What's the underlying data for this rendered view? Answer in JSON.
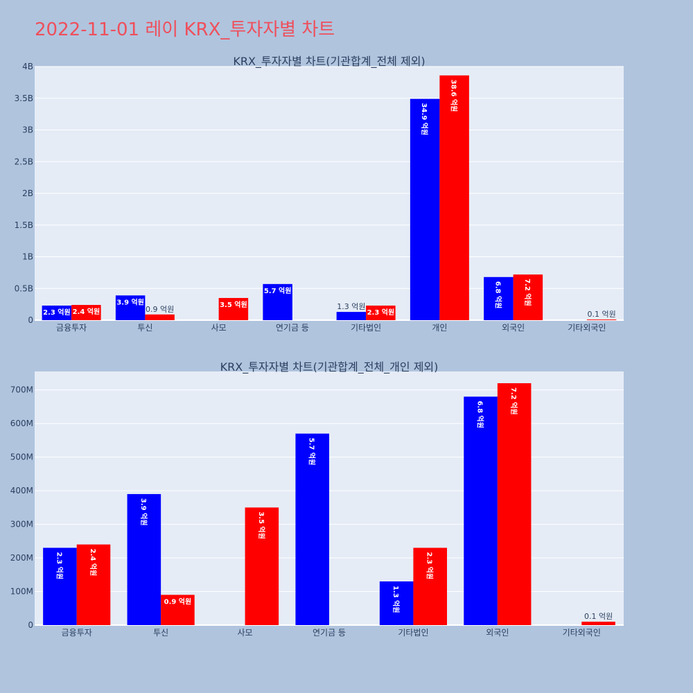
{
  "page": {
    "title": "2022-11-01 레이 KRX_투자자별 차트",
    "title_color": "#ef4f5b",
    "background": "#b0c4de"
  },
  "chart_data": [
    {
      "type": "bar",
      "title": "KRX_투자자별 차트(기관합계_전체 제외)",
      "categories": [
        "금융투자",
        "투신",
        "사모",
        "연기금 등",
        "기타법인",
        "개인",
        "외국인",
        "기타외국인"
      ],
      "series": [
        {
          "color": "#0000ff",
          "values": [
            230000000,
            390000000,
            0,
            570000000,
            130000000,
            3490000000,
            680000000,
            0
          ],
          "labels": [
            "2.3 억원",
            "3.9 억원",
            "",
            "5.7 억원",
            "1.3 억원",
            "34.9 억원",
            "6.8 억원",
            ""
          ]
        },
        {
          "color": "#ff0000",
          "values": [
            240000000,
            90000000,
            350000000,
            0,
            230000000,
            3860000000,
            720000000,
            10000000
          ],
          "labels": [
            "2.4 억원",
            "0.9 억원",
            "3.5 억원",
            "",
            "2.3 억원",
            "38.6 억원",
            "7.2 억원",
            "0.1 억원"
          ]
        }
      ],
      "ylim": [
        0,
        4000000000
      ],
      "yticks": [
        0,
        500000000,
        1000000000,
        1500000000,
        2000000000,
        2500000000,
        3000000000,
        3500000000,
        4000000000
      ],
      "ytick_labels": [
        "0",
        "0.5B",
        "1B",
        "1.5B",
        "2B",
        "2.5B",
        "3B",
        "3.5B",
        "4B"
      ],
      "grid": true
    },
    {
      "type": "bar",
      "title": "KRX_투자자별 차트(기관합계_전체_개인 제외)",
      "categories": [
        "금융투자",
        "투신",
        "사모",
        "연기금 등",
        "기타법인",
        "외국인",
        "기타외국인"
      ],
      "series": [
        {
          "color": "#0000ff",
          "values": [
            230000000,
            390000000,
            0,
            570000000,
            130000000,
            680000000,
            0
          ],
          "labels": [
            "2.3 억원",
            "3.9 억원",
            "",
            "5.7 억원",
            "1.3 억원",
            "6.8 억원",
            ""
          ]
        },
        {
          "color": "#ff0000",
          "values": [
            240000000,
            90000000,
            350000000,
            0,
            230000000,
            720000000,
            10000000
          ],
          "labels": [
            "2.4 억원",
            "0.9 억원",
            "3.5 억원",
            "",
            "2.3 억원",
            "7.2 억원",
            "0.1 억원"
          ]
        }
      ],
      "ylim": [
        0,
        755000000
      ],
      "yticks": [
        0,
        100000000,
        200000000,
        300000000,
        400000000,
        500000000,
        600000000,
        700000000
      ],
      "ytick_labels": [
        "0",
        "100M",
        "200M",
        "300M",
        "400M",
        "500M",
        "600M",
        "700M"
      ],
      "grid": true
    }
  ]
}
